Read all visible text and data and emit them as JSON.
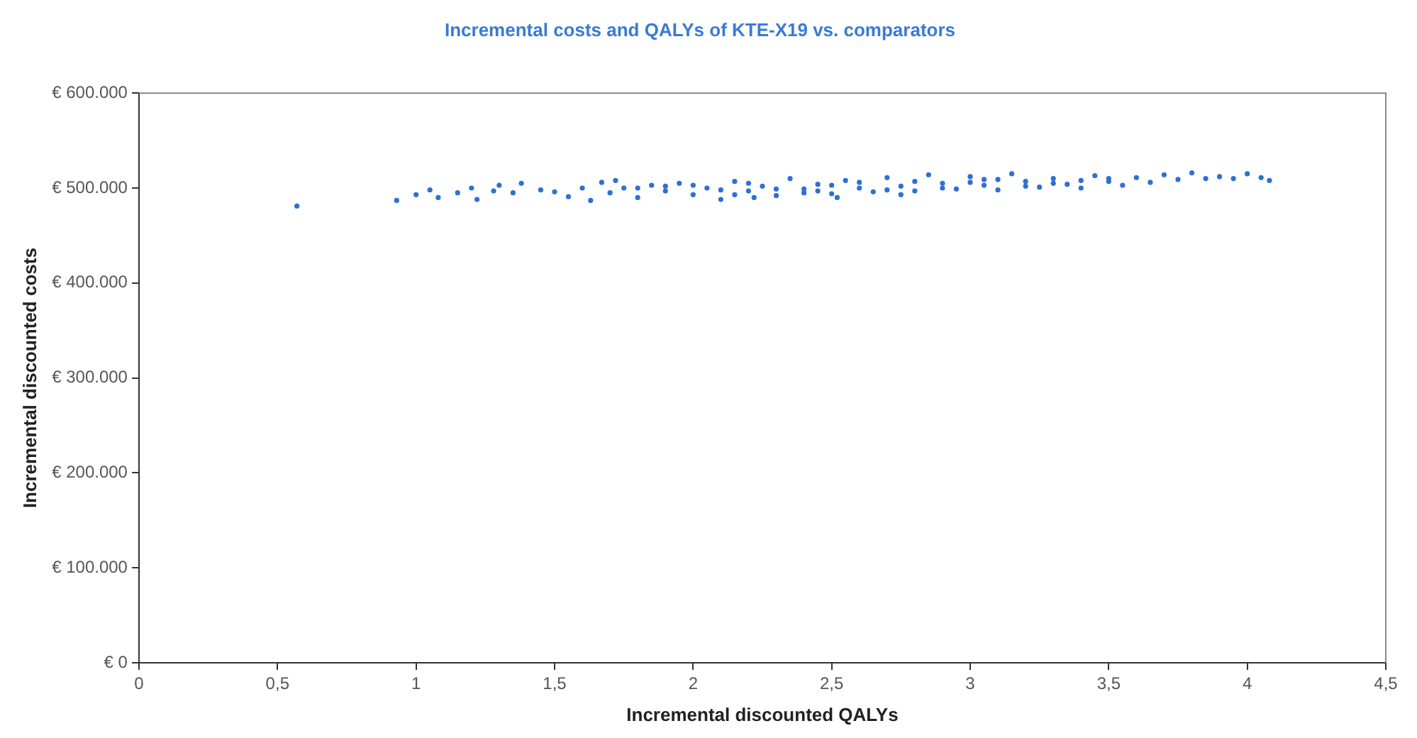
{
  "chart_data": {
    "type": "scatter",
    "title": "Incremental costs and QALYs of KTE-X19 vs. comparators",
    "xlabel": "Incremental discounted QALYs",
    "ylabel": "Incremental discounted costs",
    "x": [
      0.57,
      0.93,
      1.0,
      1.05,
      1.08,
      1.15,
      1.2,
      1.22,
      1.28,
      1.3,
      1.35,
      1.38,
      1.45,
      1.5,
      1.55,
      1.6,
      1.63,
      1.67,
      1.7,
      1.75,
      1.8,
      1.85,
      1.9,
      1.95,
      2.0,
      2.05,
      2.1,
      2.15,
      2.2,
      2.25,
      2.3,
      2.35,
      2.4,
      2.45,
      2.5,
      2.55,
      2.6,
      2.65,
      2.7,
      2.75,
      2.8,
      2.85,
      2.9,
      2.95,
      3.0,
      3.05,
      3.1,
      3.15,
      3.2,
      3.25,
      3.3,
      3.35,
      3.4,
      3.45,
      3.5,
      3.55,
      3.6,
      3.65,
      3.7,
      3.75,
      3.8,
      3.85,
      3.9,
      3.95,
      4.0,
      4.05,
      4.08,
      1.8,
      1.9,
      2.0,
      2.1,
      2.2,
      2.3,
      2.4,
      2.5,
      2.6,
      2.7,
      2.8,
      2.9,
      3.0,
      3.1,
      3.2,
      3.3,
      3.4,
      3.5,
      2.15,
      2.45,
      2.75,
      3.05,
      1.72,
      2.22,
      2.52
    ],
    "values": [
      481000,
      487000,
      493000,
      498000,
      490000,
      495000,
      500000,
      488000,
      497000,
      503000,
      495000,
      505000,
      498000,
      496000,
      491000,
      500000,
      487000,
      506000,
      495000,
      500000,
      490000,
      503000,
      497000,
      505000,
      493000,
      500000,
      488000,
      507000,
      497000,
      502000,
      492000,
      510000,
      499000,
      504000,
      494000,
      508000,
      500000,
      496000,
      511000,
      502000,
      497000,
      514000,
      505000,
      499000,
      512000,
      503000,
      498000,
      515000,
      507000,
      501000,
      510000,
      504000,
      500000,
      513000,
      507000,
      503000,
      511000,
      506000,
      514000,
      509000,
      516000,
      510000,
      512000,
      510000,
      515000,
      511000,
      508000,
      500000,
      502000,
      503000,
      498000,
      505000,
      499000,
      495000,
      503000,
      506000,
      498000,
      507000,
      500000,
      506000,
      509000,
      502000,
      505000,
      508000,
      510000,
      493000,
      497000,
      493000,
      509000,
      508000,
      490000,
      490000
    ],
    "color": "#2f6fd6",
    "marker": "circle",
    "xlim": [
      0,
      4.5
    ],
    "xticks": [
      0,
      {
        "value": 0.5,
        "label": "0,5"
      },
      1,
      {
        "value": 1.5,
        "label": "1,5"
      },
      2,
      {
        "value": 2.5,
        "label": "2,5"
      },
      3,
      {
        "value": 3.5,
        "label": "3,5"
      },
      4,
      {
        "value": 4.5,
        "label": "4,5"
      }
    ],
    "ylim": [
      0,
      600000
    ],
    "yticks": [
      {
        "value": 0,
        "label": "€ 0"
      },
      {
        "value": 100000,
        "label": "€ 100.000"
      },
      {
        "value": 200000,
        "label": "€ 200.000"
      },
      {
        "value": 300000,
        "label": "€ 300.000"
      },
      {
        "value": 400000,
        "label": "€ 400.000"
      },
      {
        "value": 500000,
        "label": "€ 500.000"
      },
      {
        "value": 600000,
        "label": "€ 600.000"
      }
    ],
    "grid": false,
    "legend": false
  }
}
